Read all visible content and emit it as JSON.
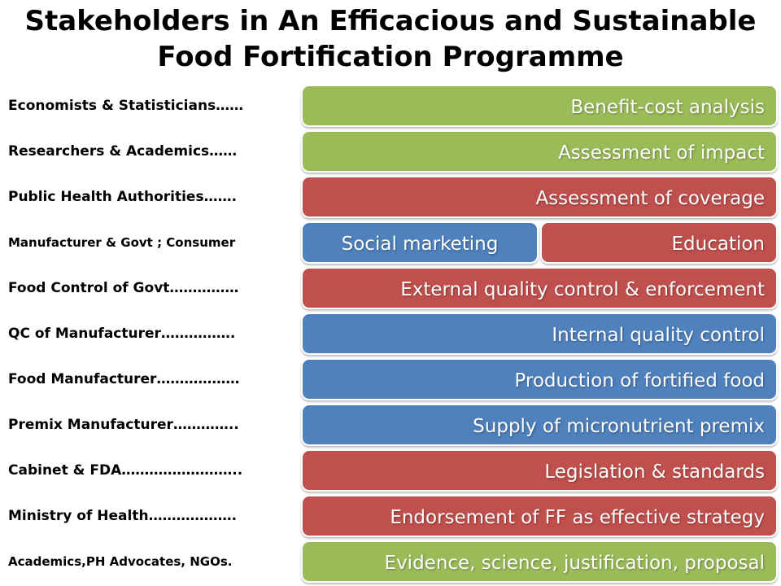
{
  "title": {
    "line1": "Stakeholders in An Efficacious and Sustainable",
    "line2": "Food Fortification Programme"
  },
  "colors": {
    "green": "#9bbb59",
    "red": "#c0504d",
    "blue": "#4f81bd"
  },
  "rows": [
    {
      "stakeholder": "Economists & Statisticians……",
      "activity": "Benefit-cost analysis",
      "color": "green"
    },
    {
      "stakeholder": "Researchers & Academics……",
      "activity": "Assessment of impact",
      "color": "green"
    },
    {
      "stakeholder": "Public Health Authorities…….",
      "activity": "Assessment of coverage",
      "color": "red"
    },
    {
      "stakeholder": "Manufacturer & Govt ; Consumer",
      "activity_left": "Social marketing",
      "activity_right": "Education",
      "color_left": "blue",
      "color_right": "red"
    },
    {
      "stakeholder": "Food Control of Govt……………",
      "activity": "External quality control & enforcement",
      "color": "red"
    },
    {
      "stakeholder": "QC of Manufacturer…………….",
      "activity": "Internal quality control",
      "color": "blue"
    },
    {
      "stakeholder": "Food Manufacturer………………",
      "activity": "Production of fortified food",
      "color": "blue"
    },
    {
      "stakeholder": "Premix Manufacturer…………..",
      "activity": "Supply of micronutrient premix",
      "color": "blue"
    },
    {
      "stakeholder": "Cabinet & FDA……………………..",
      "activity": "Legislation & standards",
      "color": "red"
    },
    {
      "stakeholder": "Ministry of Health……………….",
      "activity": "Endorsement of FF as effective strategy",
      "color": "red"
    },
    {
      "stakeholder": "Academics,PH Advocates, NGOs.",
      "activity": "Evidence, science, justification, proposal",
      "color": "green"
    }
  ]
}
